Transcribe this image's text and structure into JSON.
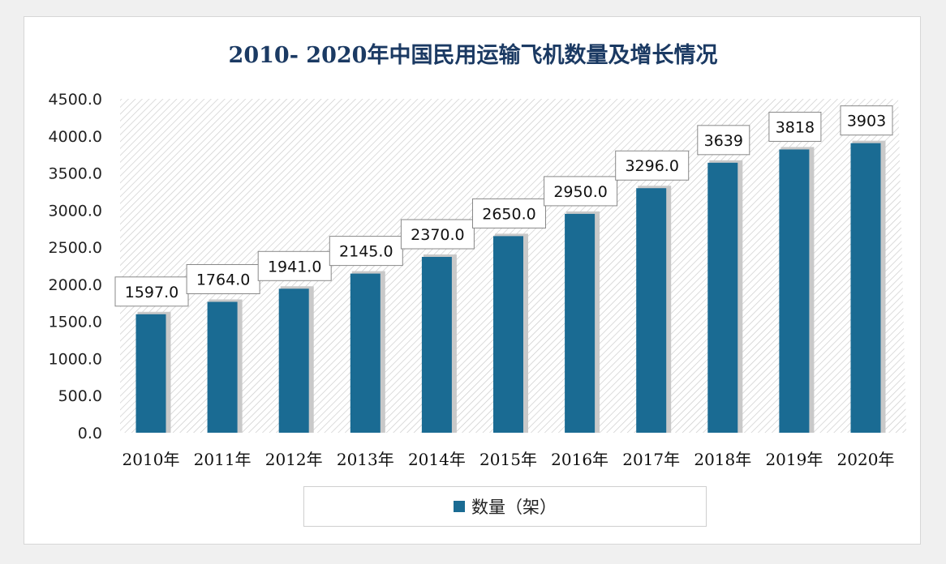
{
  "colors": {
    "bar": "#1a6b93",
    "bar_shadow": "#c9c9c9",
    "hatch": "#c8c8c8",
    "title": "#1b3a63"
  },
  "chart_data": {
    "type": "bar",
    "title": "2010- 2020年中国民用运输飞机数量及增长情况",
    "categories": [
      "2010年",
      "2011年",
      "2012年",
      "2013年",
      "2014年",
      "2015年",
      "2016年",
      "2017年",
      "2018年",
      "2019年",
      "2020年"
    ],
    "series": [
      {
        "name": "数量（架）",
        "values": [
          1597.0,
          1764.0,
          1941.0,
          2145.0,
          2370.0,
          2650.0,
          2950.0,
          3296.0,
          3639,
          3818,
          3903
        ]
      }
    ],
    "data_labels": [
      "1597.0",
      "1764.0",
      "1941.0",
      "2145.0",
      "2370.0",
      "2650.0",
      "2950.0",
      "3296.0",
      "3639",
      "3818",
      "3903"
    ],
    "yticks": [
      "0.0",
      "500.0",
      "1000.0",
      "1500.0",
      "2000.0",
      "2500.0",
      "3000.0",
      "3500.0",
      "4000.0",
      "4500.0"
    ],
    "ylim": [
      0,
      4500
    ],
    "legend_position": "bottom",
    "grid": false
  }
}
